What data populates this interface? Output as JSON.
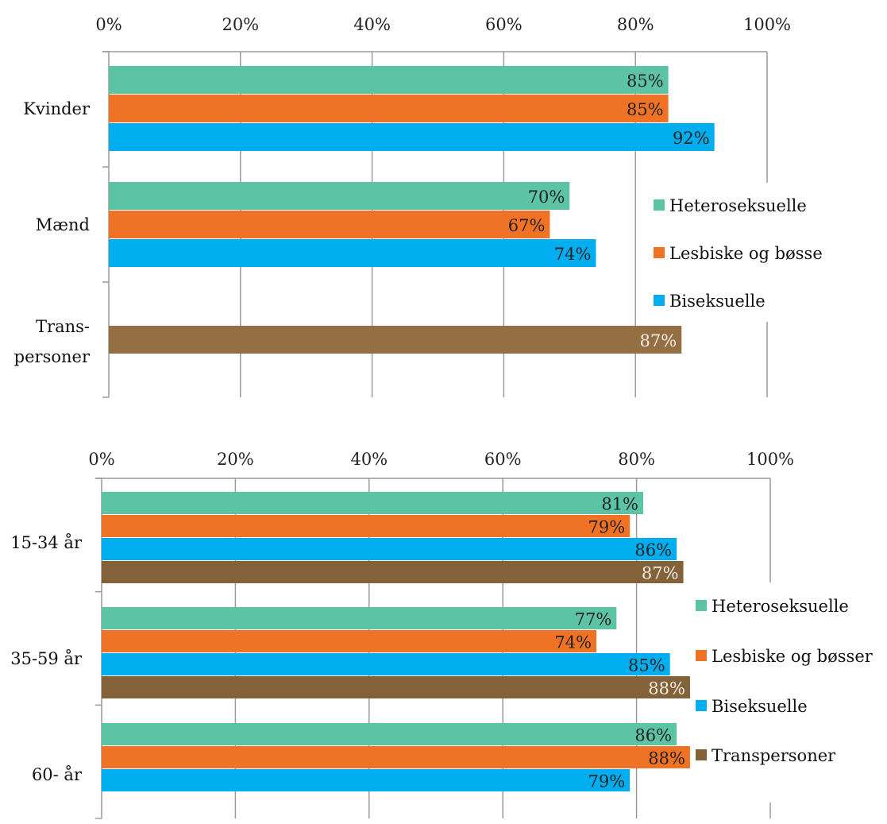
{
  "chart_data": [
    {
      "type": "bar",
      "orientation": "horizontal",
      "xlim": [
        0,
        100
      ],
      "x_tick_labels": [
        "0%",
        "20%",
        "40%",
        "60%",
        "80%",
        "100%"
      ],
      "grid": true,
      "legend_position": "right",
      "categories": [
        {
          "label_lines": [
            "Kvinder"
          ]
        },
        {
          "label_lines": [
            "Mænd"
          ]
        },
        {
          "label_lines": [
            "Trans-",
            "personer"
          ]
        }
      ],
      "series": [
        {
          "name": "Heteroseksuelle",
          "color": "#5CC3A5",
          "values": [
            85,
            70,
            null
          ]
        },
        {
          "name": "Lesbiske og bøsse",
          "color": "#F07224",
          "values": [
            85,
            67,
            null
          ]
        },
        {
          "name": "Biseksuelle",
          "color": "#00AEEF",
          "values": [
            92,
            74,
            null
          ]
        },
        {
          "name": "",
          "color": "#956F44",
          "values": [
            null,
            null,
            87
          ]
        }
      ],
      "data_labels": [
        [
          "85%",
          "70%",
          null
        ],
        [
          "85%",
          "67%",
          null
        ],
        [
          "92%",
          "74%",
          null
        ],
        [
          null,
          null,
          "87%"
        ]
      ]
    },
    {
      "type": "bar",
      "orientation": "horizontal",
      "xlim": [
        0,
        100
      ],
      "x_tick_labels": [
        "0%",
        "20%",
        "40%",
        "60%",
        "80%",
        "100%"
      ],
      "grid": true,
      "legend_position": "right",
      "categories": [
        {
          "label_lines": [
            "15-34 år"
          ]
        },
        {
          "label_lines": [
            "35-59 år"
          ]
        },
        {
          "label_lines": [
            "60- år"
          ]
        }
      ],
      "series": [
        {
          "name": "Heteroseksuelle",
          "color": "#5CC3A5",
          "values": [
            81,
            77,
            86
          ]
        },
        {
          "name": "Lesbiske og bøsser",
          "color": "#F07224",
          "values": [
            79,
            74,
            88
          ]
        },
        {
          "name": "Biseksuelle",
          "color": "#00AEEF",
          "values": [
            86,
            85,
            79
          ]
        },
        {
          "name": "Transpersoner",
          "color": "#836239",
          "values": [
            87,
            88,
            null
          ]
        }
      ],
      "data_labels": [
        [
          "81%",
          "77%",
          "86%"
        ],
        [
          "79%",
          "74%",
          "88%"
        ],
        [
          "86%",
          "85%",
          "79%"
        ],
        [
          "87%",
          "88%",
          null
        ]
      ]
    }
  ]
}
